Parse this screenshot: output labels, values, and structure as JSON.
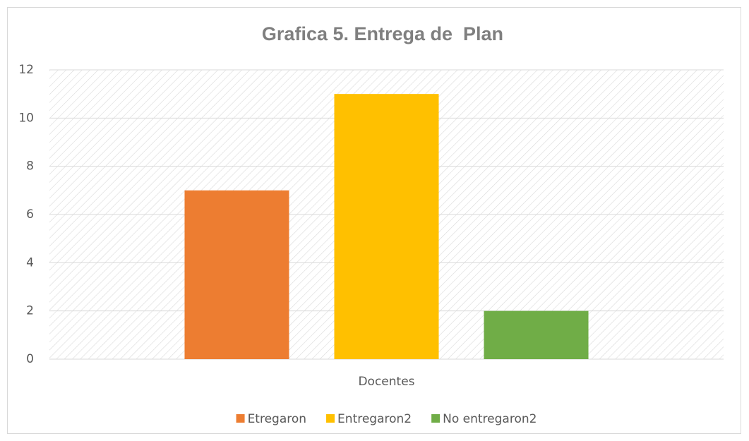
{
  "chart_data": {
    "type": "bar",
    "title": "Grafica 5. Entrega de  Plan",
    "categories": [
      "Docentes"
    ],
    "series": [
      {
        "name": "Etregaron",
        "color": "#ed7d31",
        "values": [
          7
        ]
      },
      {
        "name": "Entregaron2",
        "color": "#ffc000",
        "values": [
          11
        ]
      },
      {
        "name": "No entregaron2",
        "color": "#70ad47",
        "values": [
          2
        ]
      }
    ],
    "ylim": [
      0,
      12
    ],
    "yticks": [
      0,
      2,
      4,
      6,
      8,
      10,
      12
    ],
    "grid": true,
    "legend": "bottom"
  }
}
